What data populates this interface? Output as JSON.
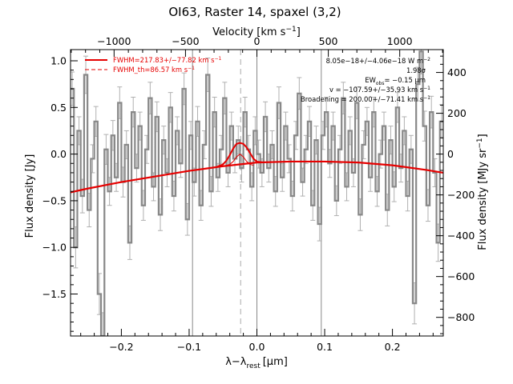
{
  "chart_data": {
    "type": "line",
    "title": "OI63, Raster 14, spaxel (3,2)",
    "xlabel": "λ−λ",
    "xlabel_sub": "rest",
    "xlabel_unit": "[μm]",
    "ylabel_left": "Flux density [Jy]",
    "ylabel_right": "Flux density [MJy sr",
    "ylabel_right_sup": "−1",
    "ylabel_right_end": "]",
    "top_label": "Velocity [km s",
    "top_label_sup": "−1",
    "top_label_end": "]",
    "xlim": [
      -0.275,
      0.275
    ],
    "ylim": [
      -1.95,
      1.12
    ],
    "x_ticks": [
      -0.2,
      -0.1,
      0.0,
      0.1,
      0.2
    ],
    "x_tick_labels": [
      "−0.2",
      "−0.1",
      "0.0",
      "0.1",
      "0.2"
    ],
    "y_ticks": [
      1.0,
      0.5,
      0.0,
      -0.5,
      -1.0,
      -1.5
    ],
    "y_tick_labels": [
      "1.0",
      "0.5",
      "0.0",
      "−0.5",
      "−1.0",
      "−1.5"
    ],
    "velocity_ticks": [
      -1000,
      -500,
      0,
      500,
      1000
    ],
    "velocity_tick_labels": [
      "−1000",
      "−500",
      "0",
      "500",
      "1000"
    ],
    "right_ticks": [
      400,
      200,
      0,
      -200,
      -400,
      -600,
      -800
    ],
    "right_tick_labels": [
      "400",
      "200",
      "0",
      "−200",
      "−400",
      "−600",
      "−800"
    ],
    "legend": [
      {
        "label": "FWHM=217.83+/−77.82 km s",
        "sup": "−1",
        "style": "solid",
        "color": "#e60000"
      },
      {
        "label": "FWHM_th=86.57 km s",
        "sup": "−1",
        "style": "dashed",
        "color": "#e60000"
      }
    ],
    "annotations": [
      "8.05e−18+/−4.06e−18 W m",
      "1.98σ",
      "EW",
      "= −0.15 μm",
      "v = −107.59+/−35.93 km s",
      "Broadening = 200.00+/−71.41 km s"
    ],
    "annotation_sub": "obs",
    "annotation_sups": [
      "−2",
      "−1",
      "−1"
    ],
    "vertical_lines": [
      {
        "x": -0.095,
        "style": "solid",
        "color": "#888888"
      },
      {
        "x": 0.0,
        "style": "solid",
        "color": "#888888"
      },
      {
        "x": 0.095,
        "style": "solid",
        "color": "#888888"
      },
      {
        "x": -0.024,
        "style": "dashed",
        "color": "#aaaaaa"
      }
    ],
    "series": [
      {
        "name": "spectrum",
        "color": "#888888",
        "style": "step",
        "x": [
          -0.275,
          -0.27,
          -0.265,
          -0.26,
          -0.255,
          -0.25,
          -0.245,
          -0.24,
          -0.235,
          -0.23,
          -0.225,
          -0.22,
          -0.215,
          -0.21,
          -0.205,
          -0.2,
          -0.195,
          -0.19,
          -0.185,
          -0.18,
          -0.175,
          -0.17,
          -0.165,
          -0.16,
          -0.155,
          -0.15,
          -0.145,
          -0.14,
          -0.135,
          -0.13,
          -0.125,
          -0.12,
          -0.115,
          -0.11,
          -0.105,
          -0.1,
          -0.095,
          -0.09,
          -0.085,
          -0.08,
          -0.075,
          -0.07,
          -0.065,
          -0.06,
          -0.055,
          -0.05,
          -0.045,
          -0.04,
          -0.035,
          -0.03,
          -0.025,
          -0.02,
          -0.015,
          -0.01,
          -0.005,
          0.0,
          0.005,
          0.01,
          0.015,
          0.02,
          0.025,
          0.03,
          0.035,
          0.04,
          0.045,
          0.05,
          0.055,
          0.06,
          0.065,
          0.07,
          0.075,
          0.08,
          0.085,
          0.09,
          0.095,
          0.1,
          0.105,
          0.11,
          0.115,
          0.12,
          0.125,
          0.13,
          0.135,
          0.14,
          0.145,
          0.15,
          0.155,
          0.16,
          0.165,
          0.17,
          0.175,
          0.18,
          0.185,
          0.19,
          0.195,
          0.2,
          0.205,
          0.21,
          0.215,
          0.22,
          0.225,
          0.23,
          0.235,
          0.24,
          0.245,
          0.25,
          0.255,
          0.26,
          0.265,
          0.27
        ],
        "y": [
          0.7,
          -1.0,
          0.25,
          -0.45,
          0.85,
          -0.6,
          -0.05,
          0.35,
          -1.5,
          -1.95,
          0.05,
          -0.4,
          0.2,
          -0.25,
          0.55,
          -0.3,
          0.1,
          -0.95,
          0.45,
          -0.15,
          0.3,
          -0.55,
          0.05,
          0.6,
          -0.35,
          0.4,
          -0.65,
          0.15,
          -0.2,
          0.5,
          -0.45,
          0.25,
          -0.1,
          0.7,
          -0.7,
          0.2,
          -0.3,
          0.35,
          -0.55,
          0.1,
          0.85,
          -0.4,
          0.45,
          -0.25,
          0.05,
          0.6,
          -0.2,
          0.3,
          -0.05,
          0.15,
          -0.15,
          0.45,
          0.05,
          -0.35,
          0.25,
          0.0,
          -0.2,
          0.4,
          -0.15,
          0.1,
          -0.4,
          0.55,
          -0.25,
          0.3,
          -0.05,
          -0.45,
          0.2,
          0.65,
          -0.3,
          0.05,
          0.35,
          -0.55,
          0.15,
          -0.75,
          0.2,
          0.45,
          -0.1,
          0.3,
          -0.5,
          0.05,
          0.6,
          -0.35,
          0.25,
          -0.2,
          0.55,
          -0.65,
          0.1,
          0.35,
          -0.25,
          0.45,
          -0.4,
          0.0,
          0.3,
          -0.6,
          0.15,
          -0.35,
          0.5,
          -0.15,
          0.25,
          -0.45,
          0.05,
          -1.6,
          0.75,
          1.1,
          0.3,
          -0.55,
          0.45,
          -0.2,
          -0.95,
          0.35
        ],
        "err": [
          0.18,
          0.22,
          0.15,
          0.18,
          0.2,
          0.18,
          0.15,
          0.16,
          0.22,
          0.25,
          0.16,
          0.15,
          0.16,
          0.15,
          0.17,
          0.16,
          0.15,
          0.18,
          0.16,
          0.15,
          0.15,
          0.16,
          0.15,
          0.17,
          0.15,
          0.16,
          0.17,
          0.15,
          0.15,
          0.16,
          0.16,
          0.15,
          0.15,
          0.17,
          0.17,
          0.15,
          0.15,
          0.16,
          0.16,
          0.15,
          0.18,
          0.16,
          0.16,
          0.15,
          0.15,
          0.17,
          0.15,
          0.15,
          0.15,
          0.15,
          0.15,
          0.16,
          0.15,
          0.15,
          0.15,
          0.15,
          0.15,
          0.16,
          0.15,
          0.15,
          0.16,
          0.17,
          0.15,
          0.15,
          0.15,
          0.16,
          0.15,
          0.17,
          0.15,
          0.15,
          0.16,
          0.16,
          0.15,
          0.18,
          0.15,
          0.16,
          0.15,
          0.15,
          0.16,
          0.15,
          0.17,
          0.15,
          0.15,
          0.15,
          0.17,
          0.17,
          0.15,
          0.15,
          0.15,
          0.16,
          0.16,
          0.15,
          0.15,
          0.17,
          0.15,
          0.16,
          0.16,
          0.15,
          0.15,
          0.16,
          0.15,
          0.22,
          0.18,
          0.24,
          0.16,
          0.17,
          0.17,
          0.15,
          0.2,
          0.18
        ]
      },
      {
        "name": "continuum",
        "color": "#e60000",
        "style": "line",
        "x": [
          -0.275,
          -0.25,
          -0.2,
          -0.15,
          -0.1,
          -0.05,
          0.0,
          0.05,
          0.1,
          0.15,
          0.2,
          0.25,
          0.275
        ],
        "y": [
          -0.41,
          -0.37,
          -0.3,
          -0.24,
          -0.18,
          -0.13,
          -0.09,
          -0.08,
          -0.08,
          -0.09,
          -0.12,
          -0.17,
          -0.2
        ]
      },
      {
        "name": "fit",
        "color": "#e60000",
        "style": "line",
        "x": [
          -0.06,
          -0.05,
          -0.045,
          -0.04,
          -0.035,
          -0.03,
          -0.025,
          -0.02,
          -0.015,
          -0.01,
          -0.005,
          0.0,
          0.01
        ],
        "y": [
          -0.14,
          -0.11,
          -0.07,
          -0.01,
          0.06,
          0.11,
          0.12,
          0.11,
          0.07,
          0.01,
          -0.05,
          -0.08,
          -0.09
        ]
      },
      {
        "name": "instrumental",
        "color": "#e60000",
        "style": "line",
        "x": [
          -0.045,
          -0.04,
          -0.035,
          -0.03,
          -0.025,
          -0.02,
          -0.015,
          -0.01,
          -0.005
        ],
        "y": [
          -0.12,
          -0.11,
          -0.08,
          -0.03,
          0.0,
          -0.03,
          -0.08,
          -0.11,
          -0.12
        ]
      }
    ]
  }
}
